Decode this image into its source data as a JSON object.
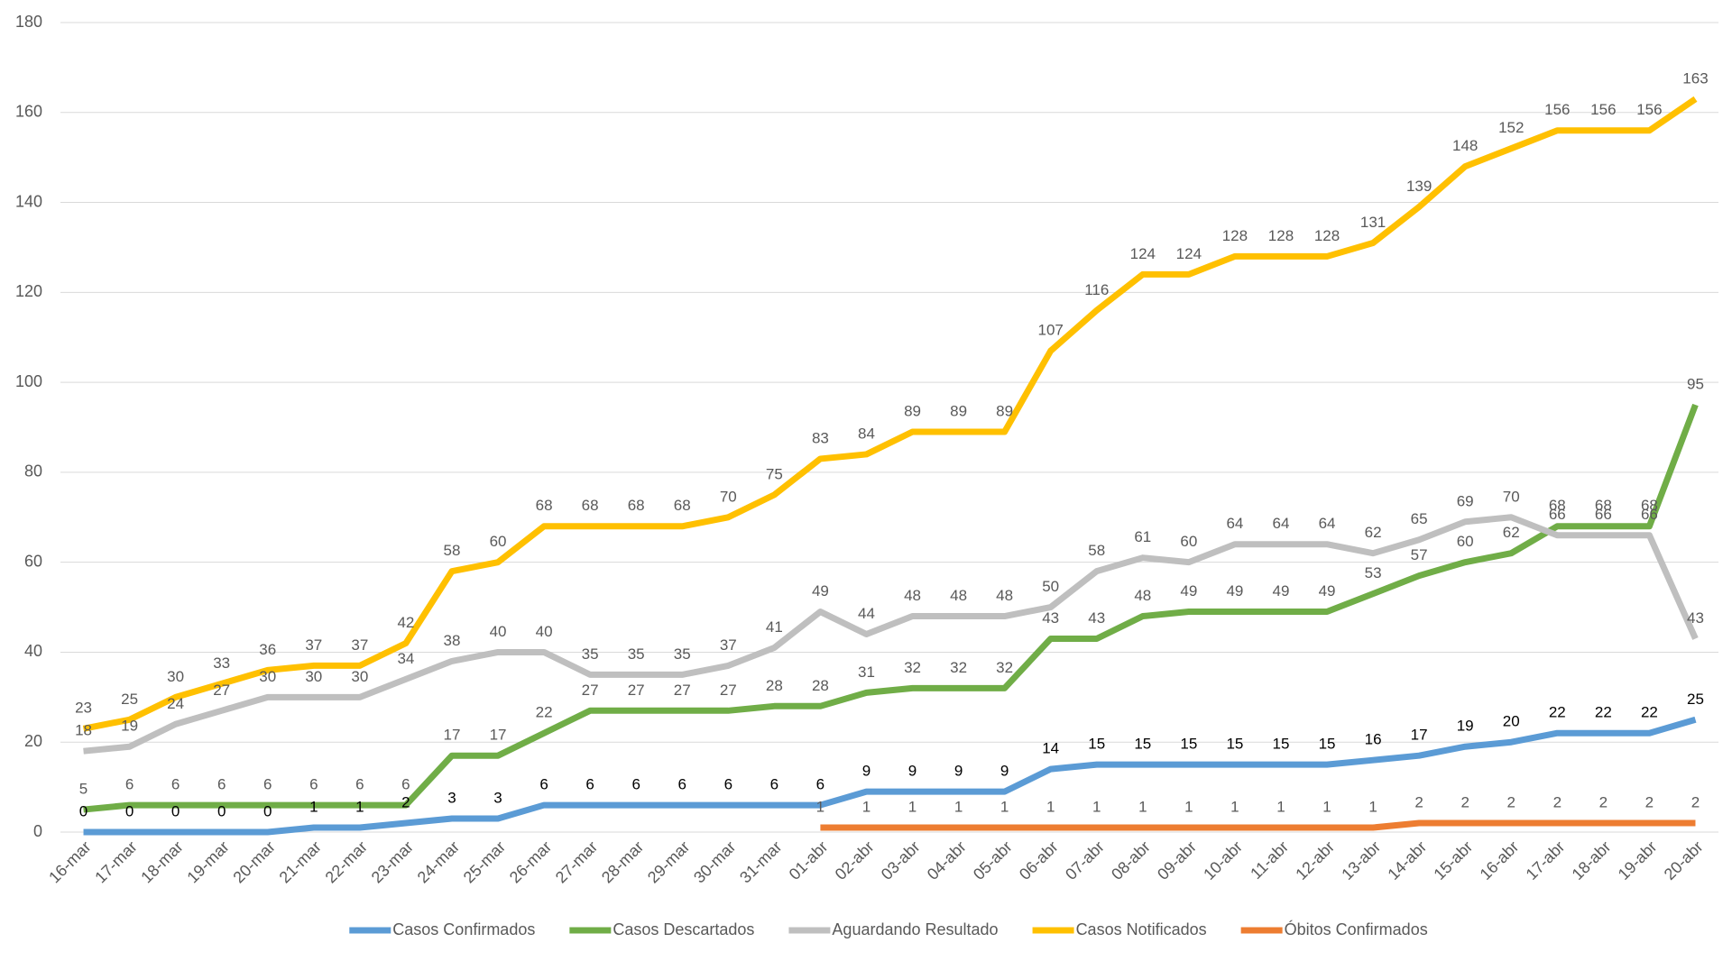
{
  "chart_data": {
    "type": "line",
    "categories": [
      "16-mar",
      "17-mar",
      "18-mar",
      "19-mar",
      "20-mar",
      "21-mar",
      "22-mar",
      "23-mar",
      "24-mar",
      "25-mar",
      "26-mar",
      "27-mar",
      "28-mar",
      "29-mar",
      "30-mar",
      "31-mar",
      "01-abr",
      "02-abr",
      "03-abr",
      "04-abr",
      "05-abr",
      "06-abr",
      "07-abr",
      "08-abr",
      "09-abr",
      "10-abr",
      "11-abr",
      "12-abr",
      "13-abr",
      "14-abr",
      "15-abr",
      "16-abr",
      "17-abr",
      "18-abr",
      "19-abr",
      "20-abr"
    ],
    "series": [
      {
        "name": "Casos Confirmados",
        "color": "#5b9bd5",
        "label_color": "#000000",
        "values": [
          0,
          0,
          0,
          0,
          0,
          1,
          1,
          2,
          3,
          3,
          6,
          6,
          6,
          6,
          6,
          6,
          6,
          9,
          9,
          9,
          9,
          14,
          15,
          15,
          15,
          15,
          15,
          15,
          16,
          17,
          19,
          20,
          22,
          22,
          22,
          25
        ]
      },
      {
        "name": "Casos Descartados",
        "color": "#70ad47",
        "label_color": "#595959",
        "values": [
          5,
          6,
          6,
          6,
          6,
          6,
          6,
          6,
          17,
          17,
          22,
          27,
          27,
          27,
          27,
          28,
          28,
          31,
          32,
          32,
          32,
          43,
          43,
          48,
          49,
          49,
          49,
          49,
          53,
          57,
          60,
          62,
          68,
          68,
          68,
          95
        ]
      },
      {
        "name": "Aguardando Resultado",
        "color": "#bfbfbf",
        "label_color": "#595959",
        "values": [
          18,
          19,
          24,
          27,
          30,
          30,
          30,
          34,
          38,
          40,
          40,
          35,
          35,
          35,
          37,
          41,
          49,
          44,
          48,
          48,
          48,
          50,
          58,
          61,
          60,
          64,
          64,
          64,
          62,
          65,
          69,
          70,
          66,
          66,
          66,
          43
        ]
      },
      {
        "name": "Casos Notificados",
        "color": "#ffc000",
        "label_color": "#595959",
        "values": [
          23,
          25,
          30,
          33,
          36,
          37,
          37,
          42,
          58,
          60,
          68,
          68,
          68,
          68,
          70,
          75,
          83,
          84,
          89,
          89,
          89,
          107,
          116,
          124,
          124,
          128,
          128,
          128,
          131,
          139,
          148,
          152,
          156,
          156,
          156,
          163
        ]
      },
      {
        "name": "Óbitos Confirmados",
        "color": "#ed7d31",
        "label_color": "#595959",
        "values": [
          null,
          null,
          null,
          null,
          null,
          null,
          null,
          null,
          null,
          null,
          null,
          null,
          null,
          null,
          null,
          null,
          1,
          1,
          1,
          1,
          1,
          1,
          1,
          1,
          1,
          1,
          1,
          1,
          1,
          2,
          2,
          2,
          2,
          2,
          2,
          2
        ]
      }
    ],
    "ylim": [
      0,
      180
    ],
    "yticks": [
      0,
      20,
      40,
      60,
      80,
      100,
      120,
      140,
      160,
      180
    ],
    "grid": true,
    "legend": "bottom"
  }
}
